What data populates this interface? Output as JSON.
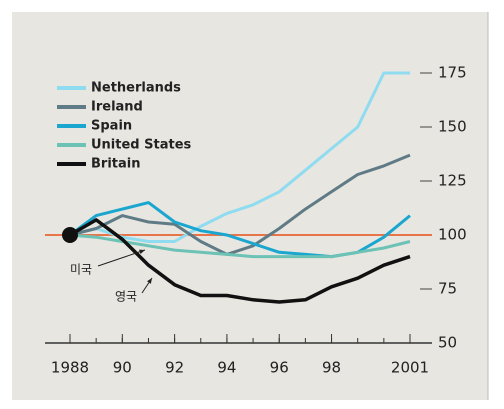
{
  "chart_data": {
    "type": "line",
    "x": [
      1988,
      1989,
      1990,
      1991,
      1992,
      1993,
      1994,
      1995,
      1996,
      1997,
      1998,
      1999,
      2000,
      2001
    ],
    "series": [
      {
        "name": "Netherlands",
        "color": "#8fdcf0",
        "values": [
          100,
          103,
          99,
          97,
          97,
          104,
          110,
          114,
          120,
          130,
          140,
          150,
          175,
          175
        ]
      },
      {
        "name": "Ireland",
        "color": "#5f7b86",
        "values": [
          100,
          103,
          109,
          106,
          105,
          97,
          91,
          95,
          103,
          112,
          120,
          128,
          132,
          137
        ]
      },
      {
        "name": "Spain",
        "color": "#1aa6cf",
        "values": [
          100,
          109,
          112,
          115,
          106,
          102,
          100,
          96,
          92,
          91,
          90,
          92,
          99,
          109
        ]
      },
      {
        "name": "United States",
        "color": "#6cc2b4",
        "values": [
          100,
          99,
          97,
          95,
          93,
          92,
          91,
          90,
          90,
          90,
          90,
          92,
          94,
          97
        ]
      },
      {
        "name": "Britain",
        "color": "#111111",
        "values": [
          100,
          107,
          98,
          86,
          77,
          72,
          72,
          70,
          69,
          70,
          76,
          80,
          86,
          90
        ]
      }
    ],
    "xlim": [
      1988,
      2001
    ],
    "xticks": [
      1988,
      {
        "value": 1990,
        "label": "90"
      },
      {
        "value": 1992,
        "label": "92"
      },
      {
        "value": 1994,
        "label": "94"
      },
      {
        "value": 1996,
        "label": "96"
      },
      {
        "value": 1998,
        "label": "98"
      },
      2001
    ],
    "ylim": [
      50,
      175
    ],
    "yticks": [
      50,
      75,
      100,
      125,
      150,
      175
    ],
    "reference_line": {
      "value": 100,
      "color": "#e8744a"
    },
    "annotations": [
      "미국",
      "영국"
    ],
    "legend": "upper left"
  }
}
